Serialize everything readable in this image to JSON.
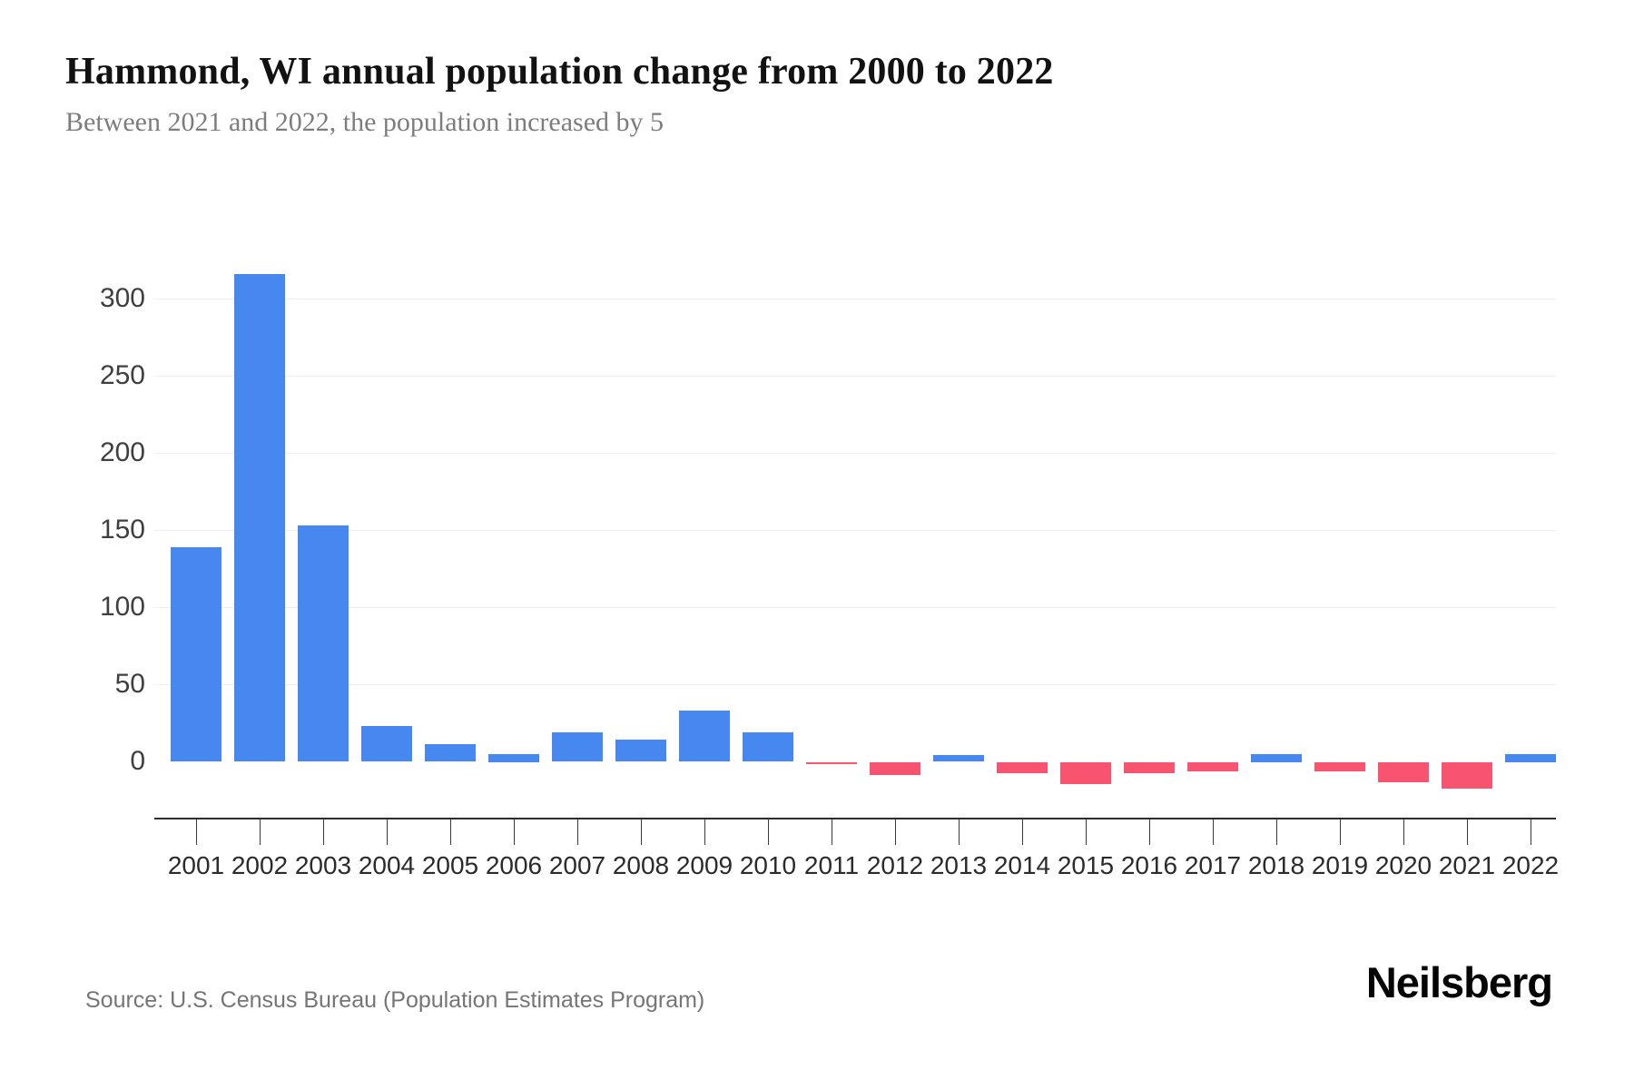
{
  "header": {
    "title": "Hammond, WI annual population change from 2000 to 2022",
    "subtitle": "Between 2021 and 2022, the population increased by 5"
  },
  "footer": {
    "source": "Source: U.S. Census Bureau (Population Estimates Program)",
    "brand": "Neilsberg"
  },
  "chart_data": {
    "type": "bar",
    "title": "Hammond, WI annual population change from 2000 to 2022",
    "xlabel": "",
    "ylabel": "",
    "categories": [
      "2001",
      "2002",
      "2003",
      "2004",
      "2005",
      "2006",
      "2007",
      "2008",
      "2009",
      "2010",
      "2011",
      "2012",
      "2013",
      "2014",
      "2015",
      "2016",
      "2017",
      "2018",
      "2019",
      "2020",
      "2021",
      "2022"
    ],
    "values": [
      139,
      316,
      153,
      23,
      11,
      5,
      19,
      14,
      33,
      19,
      -1,
      -8,
      4,
      -7,
      -14,
      -7,
      -6,
      5,
      -6,
      -13,
      -17,
      5
    ],
    "yticks": [
      0,
      50,
      100,
      150,
      200,
      250,
      300
    ],
    "ylim": [
      -25,
      325
    ],
    "grid": true,
    "legend": "none",
    "colors": {
      "positive": "#4687f0",
      "negative": "#f8536f"
    }
  }
}
